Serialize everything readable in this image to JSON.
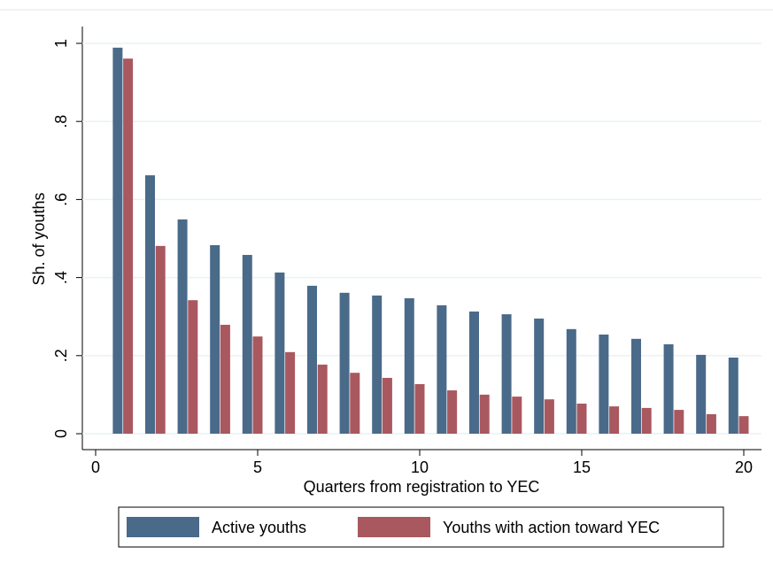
{
  "chart_data": {
    "type": "bar",
    "x_label": "Quarters from registration to YEC",
    "y_label": "Sh. of youths",
    "x": [
      1,
      2,
      3,
      4,
      5,
      6,
      7,
      8,
      9,
      10,
      11,
      12,
      13,
      14,
      15,
      16,
      17,
      18,
      19,
      20
    ],
    "series": [
      {
        "name": "Active youths",
        "color": "#4a6a89",
        "values": [
          0.989,
          0.662,
          0.549,
          0.483,
          0.458,
          0.413,
          0.379,
          0.361,
          0.354,
          0.347,
          0.329,
          0.313,
          0.306,
          0.295,
          0.268,
          0.254,
          0.243,
          0.229,
          0.202,
          0.195
        ]
      },
      {
        "name": "Youths with action toward YEC",
        "color": "#a9585f",
        "values": [
          0.961,
          0.481,
          0.342,
          0.279,
          0.249,
          0.209,
          0.177,
          0.156,
          0.143,
          0.127,
          0.111,
          0.1,
          0.095,
          0.088,
          0.077,
          0.07,
          0.066,
          0.061,
          0.05,
          0.045
        ]
      }
    ],
    "xlim": [
      0,
      20
    ],
    "xticks": [
      0,
      5,
      10,
      15,
      20
    ],
    "ylim": [
      0,
      1
    ],
    "yticks": [
      0,
      {
        "value": 0.2,
        "label": ".2"
      },
      {
        "value": 0.4,
        "label": ".4"
      },
      {
        "value": 0.6,
        "label": ".6"
      },
      {
        "value": 0.8,
        "label": ".8"
      },
      1
    ],
    "grid": true
  }
}
